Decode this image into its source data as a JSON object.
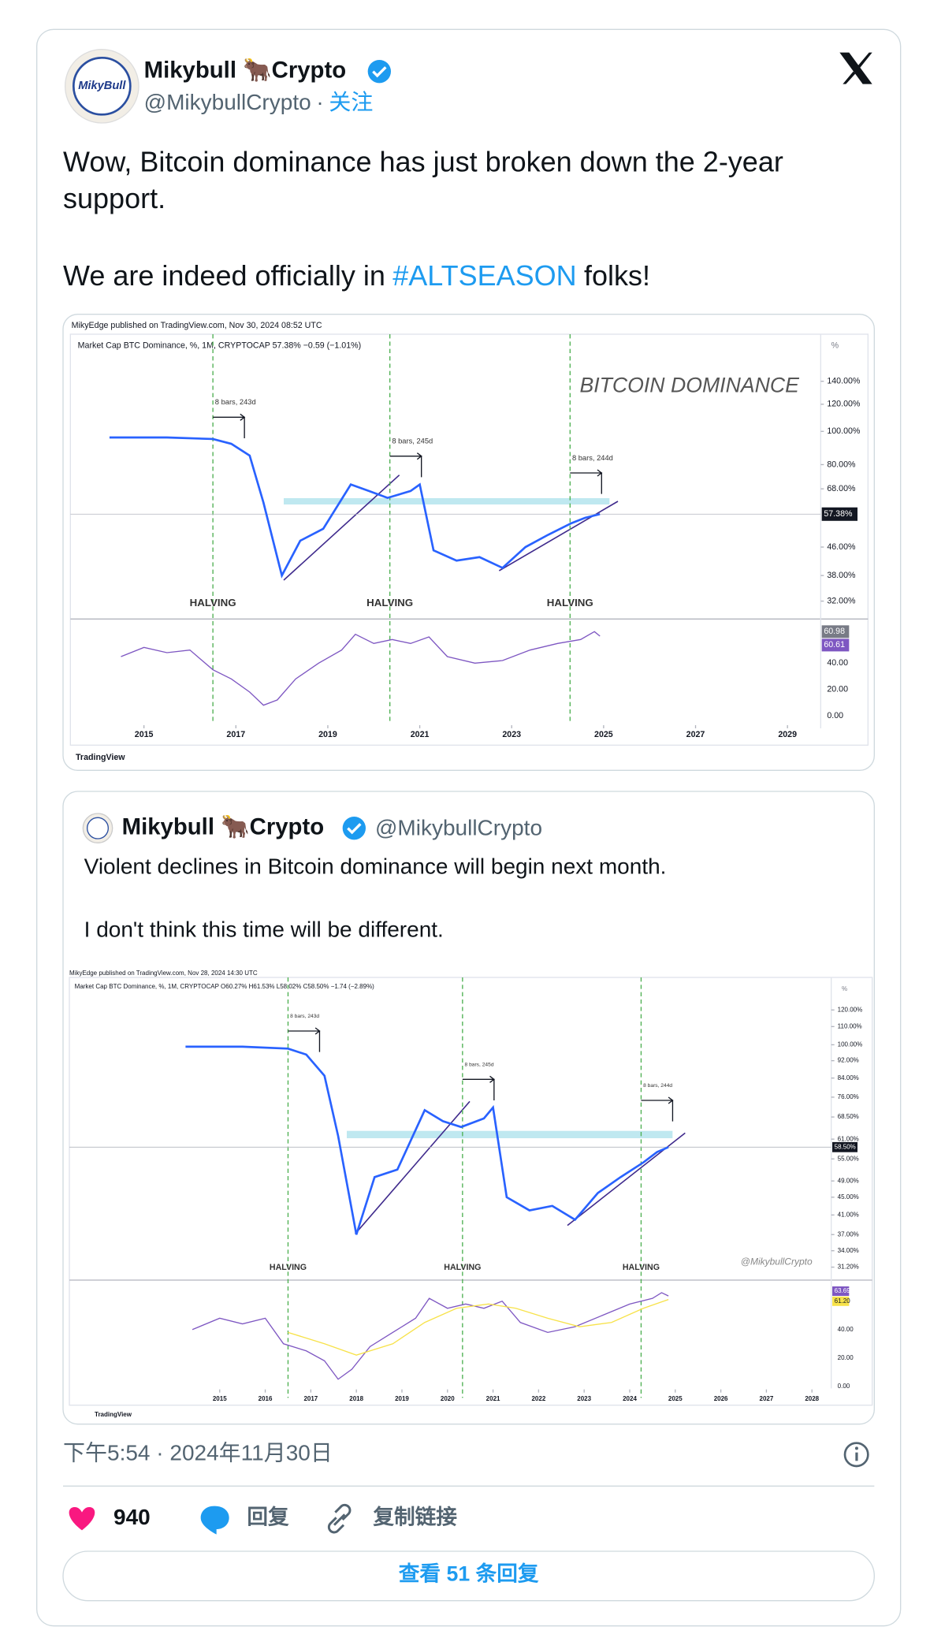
{
  "tweet": {
    "author": {
      "name": "Mikybull 🐂Crypto",
      "handle": "@MikybullCrypto",
      "separator": "·",
      "follow": "关注",
      "avatar_label": "MikyBull"
    },
    "text_lines": [
      "Wow, Bitcoin dominance has just broken down the 2-year",
      "support."
    ],
    "text_line_3": {
      "before": "We are indeed officially in",
      "hashtag": "#ALTSEASON",
      "after": "folks!"
    },
    "quote": {
      "name": "Mikybull 🐂Crypto",
      "handle": "@MikybullCrypto",
      "text_lines": [
        "Violent declines in Bitcoin dominance will begin next month.",
        "I don't think this time will be different."
      ]
    },
    "timestamp": "下午5:54 · 2024年11月30日",
    "likes": 940,
    "reply_label": "回复",
    "copy_link_label": "复制链接",
    "view_replies": "查看 51 条回复"
  },
  "charts": [
    {
      "type": "line",
      "log_y": true,
      "header": "MikyEdge published on TradingView.com, Nov 30, 2024 08:52 UTC",
      "symbol_line": "Market Cap BTC Dominance, %, 1M, CRYPTOCAP  57.38%  −0.59 (−1.01%)",
      "title": "BITCOIN DOMINANCE",
      "y_axis_unit": "%",
      "x": [
        2014.25,
        2015.5,
        2016.5,
        2016.9,
        2017.3,
        2017.6,
        2018.0,
        2018.4,
        2018.9,
        2019.5,
        2019.9,
        2020.3,
        2020.8,
        2021.0,
        2021.3,
        2021.8,
        2022.3,
        2022.8,
        2023.3,
        2023.8,
        2024.3,
        2024.6,
        2024.92
      ],
      "series": [
        {
          "color": "#2962ff",
          "values": [
            96,
            96,
            95,
            92,
            85,
            62,
            38,
            48,
            52,
            70,
            67,
            64,
            67,
            70,
            45,
            42,
            43,
            40,
            46,
            50,
            54,
            56,
            57.38
          ]
        }
      ],
      "xlim": [
        2013.4,
        2029.7
      ],
      "ylim": [
        29.6,
        192
      ],
      "xticks": [
        2015,
        2017,
        2019,
        2021,
        2023,
        2025,
        2027,
        2029
      ],
      "yticks": [
        {
          "value": 140,
          "label": "140.00%"
        },
        {
          "value": 120,
          "label": "120.00%"
        },
        {
          "value": 100,
          "label": "100.00%"
        },
        {
          "value": 80,
          "label": "80.00%"
        },
        {
          "value": 68,
          "label": "68.00%"
        },
        {
          "value": 46,
          "label": "46.00%"
        },
        {
          "value": 38,
          "label": "38.00%"
        },
        {
          "value": 32,
          "label": "32.00%"
        }
      ],
      "last_value": {
        "value": 57.38,
        "label": "57.38%"
      },
      "halvings": {
        "x": [
          2016.5,
          2020.35,
          2024.27
        ],
        "label": "HALVING"
      },
      "annotations": [
        "8 bars, 243d",
        "8 bars, 245d",
        "8 bars, 244d"
      ],
      "indicator": {
        "ylim": [
          -4.8,
          70.4
        ],
        "yticks": [
          {
            "value": 40,
            "label": "40.00"
          },
          {
            "value": 20,
            "label": "20.00"
          },
          {
            "value": 0,
            "label": "0.00"
          }
        ],
        "series": [
          {
            "color": "#7e57c2",
            "x": [
              2014.5,
              2015,
              2015.5,
              2016,
              2016.5,
              2016.9,
              2017.3,
              2017.6,
              2017.9,
              2018.3,
              2018.8,
              2019.3,
              2019.6,
              2020,
              2020.4,
              2020.8,
              2021.2,
              2021.6,
              2022.2,
              2022.8,
              2023.4,
              2024,
              2024.5,
              2024.8,
              2024.92
            ],
            "values": [
              45,
              52,
              48,
              50,
              35,
              28,
              18,
              8,
              12,
              28,
              40,
              50,
              62,
              55,
              58,
              55,
              60,
              45,
              40,
              42,
              50,
              55,
              58,
              64,
              60.61
            ]
          }
        ],
        "last_values": [
          {
            "value": 60.98,
            "label": "60.98",
            "color": "#787b86"
          },
          {
            "value": 60.61,
            "label": "60.61",
            "color": "#7e57c2"
          }
        ]
      },
      "watermarks": [
        "TradingView"
      ]
    },
    {
      "type": "line",
      "log_y": true,
      "header": "MikyEdge published on TradingView.com, Nov 28, 2024 14:30 UTC",
      "symbol_line": "Market Cap BTC Dominance, %, 1M, CRYPTOCAP  O60.27%  H61.53%  L58.02%  C58.50%  −1.74 (−2.89%)",
      "y_axis_unit": "%",
      "x": [
        2014.25,
        2015.5,
        2016.5,
        2016.9,
        2017.3,
        2017.6,
        2018.0,
        2018.4,
        2018.9,
        2019.5,
        2019.9,
        2020.3,
        2020.8,
        2021.0,
        2021.3,
        2021.8,
        2022.3,
        2022.8,
        2023.3,
        2023.8,
        2024.3,
        2024.6,
        2024.85
      ],
      "series": [
        {
          "color": "#2962ff",
          "values": [
            99,
            99,
            98,
            95,
            85,
            62,
            37,
            50,
            52,
            71,
            67,
            65,
            68,
            72,
            45,
            42,
            43,
            40,
            46,
            50,
            54,
            57,
            58.5
          ]
        }
      ],
      "xlim": [
        2011.7,
        2028.4
      ],
      "ylim": [
        29.8,
        142.3
      ],
      "xticks": [
        2015,
        2016,
        2017,
        2018,
        2019,
        2020,
        2021,
        2022,
        2023,
        2024,
        2025,
        2026,
        2027,
        2028
      ],
      "yticks": [
        {
          "value": 120,
          "label": "120.00%"
        },
        {
          "value": 110,
          "label": "110.00%"
        },
        {
          "value": 100,
          "label": "100.00%"
        },
        {
          "value": 92,
          "label": "92.00%"
        },
        {
          "value": 84,
          "label": "84.00%"
        },
        {
          "value": 76,
          "label": "76.00%"
        },
        {
          "value": 68.5,
          "label": "68.50%"
        },
        {
          "value": 61,
          "label": "61.00%"
        },
        {
          "value": 55,
          "label": "55.00%"
        },
        {
          "value": 49,
          "label": "49.00%"
        },
        {
          "value": 45,
          "label": "45.00%"
        },
        {
          "value": 41,
          "label": "41.00%"
        },
        {
          "value": 37,
          "label": "37.00%"
        },
        {
          "value": 34,
          "label": "34.00%"
        },
        {
          "value": 31.2,
          "label": "31.20%"
        }
      ],
      "last_value": {
        "value": 58.5,
        "label": "58.50%"
      },
      "halvings": {
        "x": [
          2016.5,
          2020.33,
          2024.25
        ],
        "label": "HALVING"
      },
      "annotations": [
        "8 bars, 243d",
        "8 bars, 245d",
        "8 bars, 244d"
      ],
      "indicator": {
        "ylim": [
          -8.1,
          71.9
        ],
        "yticks": [
          {
            "value": 40,
            "label": "40.00"
          },
          {
            "value": 20,
            "label": "20.00"
          },
          {
            "value": 0,
            "label": "0.00"
          }
        ],
        "series": [
          {
            "color": "#7e57c2",
            "x": [
              2014.4,
              2015,
              2015.5,
              2016,
              2016.4,
              2016.9,
              2017.3,
              2017.6,
              2017.9,
              2018.3,
              2018.8,
              2019.3,
              2019.6,
              2020,
              2020.4,
              2020.8,
              2021.2,
              2021.6,
              2022.2,
              2022.8,
              2023.4,
              2024,
              2024.5,
              2024.7,
              2024.85
            ],
            "values": [
              40,
              48,
              44,
              48,
              30,
              25,
              18,
              5,
              12,
              28,
              38,
              48,
              62,
              55,
              58,
              55,
              60,
              45,
              38,
              42,
              50,
              58,
              62,
              66,
              63.69
            ]
          },
          {
            "color": "#f7e24a",
            "x": [
              2016.5,
              2017.3,
              2018,
              2018.8,
              2019.5,
              2020.2,
              2020.9,
              2021.5,
              2022.2,
              2022.9,
              2023.6,
              2024.3,
              2024.85
            ],
            "values": [
              38,
              30,
              22,
              30,
              45,
              55,
              58,
              55,
              48,
              42,
              45,
              55,
              61.2
            ]
          }
        ],
        "last_values": [
          {
            "value": 63.69,
            "label": "63.69",
            "color": "#7e57c2"
          },
          {
            "value": 61.2,
            "label": "61.20",
            "color": "#f7e24a"
          }
        ]
      },
      "watermarks": [
        "TradingView",
        "@MikybullCrypto"
      ]
    }
  ]
}
